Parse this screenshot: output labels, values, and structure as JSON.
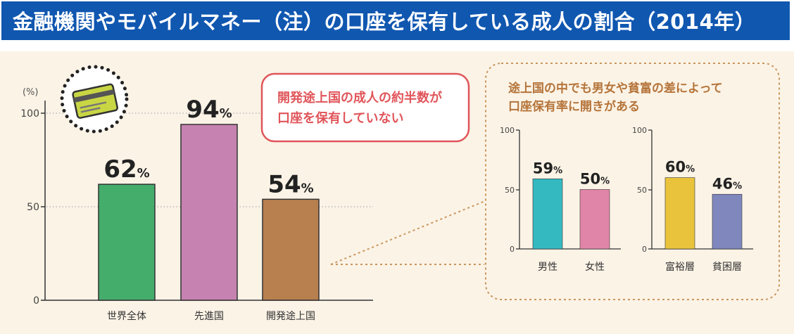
{
  "title": "金融機関やモバイルマネー（注）の口座を保有している成人の割合（2014年）",
  "colors": {
    "title_bg": "#1057b0",
    "panel_bg": "#fbf3e6",
    "callout_red": "#e0555a",
    "brown_text": "#b5743a",
    "card": "#c9d644"
  },
  "chart_data": [
    {
      "type": "bar",
      "categories": [
        "世界全体",
        "先進国",
        "開発途上国"
      ],
      "values": [
        62,
        94,
        54
      ],
      "value_labels": [
        "62",
        "94",
        "54"
      ],
      "unit": "%",
      "ylabel": "(%)",
      "yticks": [
        "0",
        "50",
        "100"
      ],
      "ylim": [
        0,
        100
      ],
      "colors": [
        "#45ad6c",
        "#c683b1",
        "#b87f4f"
      ],
      "gridlines": [
        50,
        100
      ]
    },
    {
      "type": "bar",
      "categories": [
        "男性",
        "女性"
      ],
      "values": [
        59,
        50
      ],
      "value_labels": [
        "59",
        "50"
      ],
      "unit": "%",
      "yticks": [
        "0",
        "50",
        "100"
      ],
      "ylim": [
        0,
        100
      ],
      "colors": [
        "#35b9c1",
        "#e185a8"
      ]
    },
    {
      "type": "bar",
      "categories": [
        "富裕層",
        "貧困層"
      ],
      "values": [
        60,
        46
      ],
      "value_labels": [
        "60",
        "46"
      ],
      "unit": "%",
      "yticks": [
        "0",
        "50",
        "100"
      ],
      "ylim": [
        0,
        100
      ],
      "colors": [
        "#e9c33b",
        "#7f87bd"
      ]
    }
  ],
  "callout": {
    "lines": [
      "開発途上国の成人の約半数が",
      "口座を保有していない"
    ]
  },
  "inset": {
    "heading_lines": [
      "途上国の中でも男女や貧富の差によって",
      "口座保有率に開きがある"
    ]
  },
  "icons": {
    "card": "credit-card-icon"
  }
}
